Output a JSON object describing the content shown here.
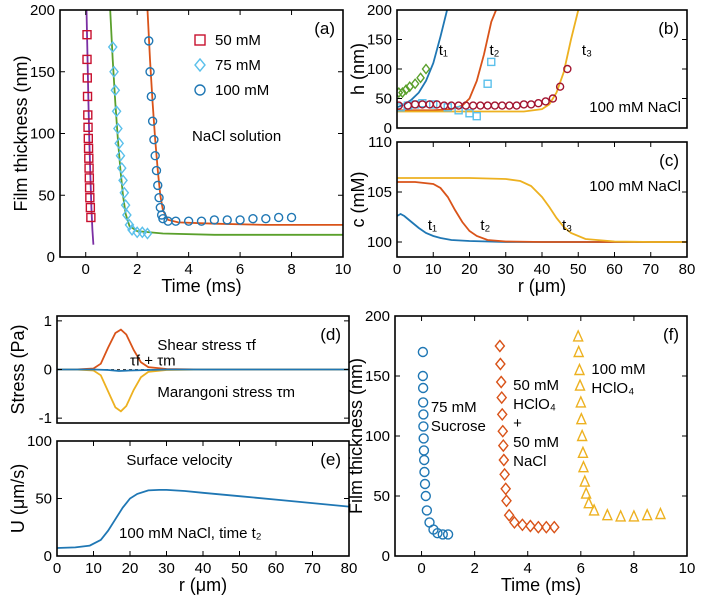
{
  "colors": {
    "blue": "#1f77b4",
    "orange": "#d95319",
    "yellow": "#edb120",
    "red": "#c8102e",
    "cyan": "#5bc0eb",
    "green": "#5aa02c",
    "purple": "#7b2fa3",
    "maroon": "#a2142f"
  },
  "chart_data": [
    {
      "id": "a",
      "type": "scatter",
      "panel_label": "(a)",
      "xlabel": "Time (ms)",
      "ylabel": "Film thickness (nm)",
      "xlim": [
        -1,
        10
      ],
      "ylim": [
        0,
        200
      ],
      "xticks": [
        0,
        2,
        4,
        6,
        8,
        10
      ],
      "yticks": [
        0,
        50,
        100,
        150,
        200
      ],
      "annotation": "NaCl solution",
      "series": [
        {
          "name": "50 mM",
          "marker": "square",
          "color": "red",
          "x": [
            0.05,
            0.05,
            0.06,
            0.07,
            0.08,
            0.09,
            0.1,
            0.11,
            0.12,
            0.13,
            0.14,
            0.15,
            0.16,
            0.18,
            0.2
          ],
          "y": [
            180,
            160,
            145,
            130,
            115,
            105,
            96,
            88,
            80,
            72,
            64,
            56,
            48,
            40,
            32
          ]
        },
        {
          "name": "75 mM",
          "marker": "diamond",
          "color": "cyan",
          "x": [
            1.05,
            1.1,
            1.15,
            1.2,
            1.25,
            1.3,
            1.35,
            1.4,
            1.45,
            1.5,
            1.55,
            1.6,
            1.7,
            1.8,
            2.0,
            2.2,
            2.4
          ],
          "y": [
            170,
            150,
            135,
            118,
            104,
            92,
            82,
            72,
            62,
            52,
            42,
            34,
            26,
            22,
            20,
            20,
            19
          ]
        },
        {
          "name": "100 mM",
          "marker": "circle",
          "color": "blue",
          "x": [
            2.45,
            2.5,
            2.55,
            2.6,
            2.65,
            2.7,
            2.75,
            2.8,
            2.85,
            2.9,
            2.95,
            3.0,
            3.2,
            3.5,
            4.0,
            4.5,
            5.0,
            5.5,
            6.0,
            6.5,
            7.0,
            7.5,
            8.0
          ],
          "y": [
            175,
            150,
            130,
            110,
            95,
            82,
            70,
            58,
            48,
            40,
            34,
            31,
            29,
            29,
            29,
            29,
            30,
            30,
            30,
            31,
            31,
            32,
            32
          ]
        }
      ],
      "fits": [
        {
          "color": "purple",
          "x": [
            0.03,
            0.06,
            0.1,
            0.14,
            0.18,
            0.22,
            0.26,
            0.3
          ],
          "y": [
            200,
            170,
            130,
            95,
            65,
            40,
            22,
            10
          ]
        },
        {
          "color": "green",
          "x": [
            0.95,
            1.05,
            1.15,
            1.25,
            1.35,
            1.45,
            1.55,
            1.7,
            2.0,
            3.0,
            5.0,
            8.0,
            10.0
          ],
          "y": [
            200,
            160,
            125,
            95,
            70,
            50,
            35,
            25,
            21,
            19,
            18,
            18,
            18
          ]
        },
        {
          "color": "orange",
          "x": [
            2.4,
            2.5,
            2.6,
            2.7,
            2.8,
            2.9,
            3.0,
            3.2,
            3.6,
            5.0,
            7.0,
            10.0
          ],
          "y": [
            200,
            160,
            125,
            95,
            70,
            50,
            38,
            30,
            28,
            27,
            26,
            26
          ]
        }
      ]
    },
    {
      "id": "b",
      "type": "scatter",
      "panel_label": "(b)",
      "xlabel": "",
      "ylabel": "h (nm)",
      "xlim": [
        0,
        80
      ],
      "ylim": [
        0,
        200
      ],
      "yticks": [
        0,
        50,
        100,
        150,
        200
      ],
      "annotation": "100 mM NaCl",
      "curve_labels": [
        "t₁",
        "t₂",
        "t₃"
      ],
      "series": [
        {
          "name": "t1 data",
          "marker": "diamond",
          "color": "green",
          "x": [
            0.5,
            1.5,
            2.5,
            3.5,
            5,
            6.5,
            8
          ],
          "y": [
            60,
            60,
            65,
            70,
            75,
            85,
            100
          ]
        },
        {
          "name": "t2 data",
          "marker": "square",
          "color": "cyan",
          "x": [
            1,
            3,
            5,
            7,
            10,
            14,
            17,
            20,
            22,
            25,
            26
          ],
          "y": [
            35,
            38,
            40,
            42,
            40,
            35,
            30,
            25,
            20,
            75,
            112
          ]
        },
        {
          "name": "t3 data",
          "marker": "circle",
          "color": "maroon",
          "x": [
            0.5,
            3,
            5,
            7,
            9,
            11,
            13,
            15,
            17,
            19,
            21,
            23,
            25,
            27,
            29,
            31,
            33,
            35,
            37,
            39,
            41,
            43,
            45,
            47
          ],
          "y": [
            38,
            38,
            40,
            40,
            40,
            40,
            38,
            38,
            38,
            38,
            38,
            38,
            38,
            38,
            38,
            38,
            38,
            40,
            40,
            42,
            45,
            50,
            70,
            100
          ]
        }
      ],
      "fits": [
        {
          "color": "blue",
          "x": [
            0,
            2,
            4,
            6,
            8,
            10,
            12,
            14
          ],
          "y": [
            35,
            40,
            48,
            60,
            80,
            110,
            155,
            205
          ]
        },
        {
          "color": "orange",
          "x": [
            0,
            5,
            10,
            15,
            18,
            20,
            22,
            24,
            26,
            28
          ],
          "y": [
            30,
            30,
            30,
            32,
            38,
            50,
            80,
            125,
            180,
            210
          ]
        },
        {
          "color": "yellow",
          "x": [
            0,
            10,
            20,
            30,
            35,
            40,
            42,
            44,
            46,
            48,
            50,
            51
          ],
          "y": [
            28,
            28,
            28,
            28,
            28,
            32,
            40,
            60,
            95,
            150,
            200,
            220
          ]
        }
      ]
    },
    {
      "id": "c",
      "type": "line",
      "panel_label": "(c)",
      "xlabel": "r (μm)",
      "ylabel": "c (mM)",
      "xlim": [
        0,
        80
      ],
      "ylim": [
        98.5,
        110
      ],
      "xticks": [
        0,
        10,
        20,
        30,
        40,
        50,
        60,
        70,
        80
      ],
      "yticks": [
        100,
        105,
        110
      ],
      "annotation": "100 mM NaCl",
      "curve_labels": [
        "t₁",
        "t₂",
        "t₃"
      ],
      "series": [
        {
          "name": "t1",
          "color": "blue",
          "x": [
            0,
            1,
            2,
            4,
            6,
            8,
            10,
            12,
            15,
            20,
            30,
            40,
            60,
            80
          ],
          "y": [
            102.6,
            102.8,
            102.6,
            102.0,
            101.4,
            100.9,
            100.6,
            100.4,
            100.2,
            100.1,
            100.0,
            100.0,
            100.0,
            100.0
          ]
        },
        {
          "name": "t2",
          "color": "orange",
          "x": [
            0,
            5,
            10,
            12,
            14,
            16,
            18,
            20,
            22,
            25,
            30,
            40,
            60,
            80
          ],
          "y": [
            106.0,
            106.0,
            105.8,
            105.4,
            104.5,
            103.2,
            102.0,
            101.1,
            100.6,
            100.2,
            100.05,
            100.0,
            100.0,
            100.0
          ]
        },
        {
          "name": "t3",
          "color": "yellow",
          "x": [
            0,
            10,
            20,
            30,
            34,
            37,
            40,
            42,
            44,
            46,
            48,
            52,
            60,
            70,
            80
          ],
          "y": [
            106.4,
            106.4,
            106.4,
            106.3,
            106.1,
            105.6,
            104.5,
            103.5,
            102.4,
            101.5,
            100.9,
            100.3,
            100.05,
            100.0,
            100.0
          ]
        }
      ]
    },
    {
      "id": "d",
      "type": "line",
      "panel_label": "(d)",
      "xlabel": "",
      "ylabel": "Stress (Pa)",
      "xlim": [
        0,
        80
      ],
      "ylim": [
        -1.1,
        1.1
      ],
      "yticks": [
        -1,
        0,
        1
      ],
      "annotations": {
        "shear": "Shear stress τf",
        "sum": "τf + τm",
        "marangoni": "Marangoni stress τm"
      },
      "series": [
        {
          "name": "Shear stress",
          "color": "orange",
          "x": [
            0,
            5,
            10,
            12,
            14,
            16,
            17.5,
            19,
            21,
            23,
            25,
            30,
            40,
            60,
            80
          ],
          "y": [
            0,
            0,
            0.02,
            0.12,
            0.45,
            0.75,
            0.82,
            0.72,
            0.4,
            0.15,
            0.05,
            0.01,
            0,
            0,
            0
          ]
        },
        {
          "name": "Marangoni stress",
          "color": "yellow",
          "x": [
            0,
            5,
            10,
            12,
            14,
            16,
            17.5,
            19,
            21,
            23,
            25,
            30,
            40,
            60,
            80
          ],
          "y": [
            0,
            0,
            -0.02,
            -0.12,
            -0.45,
            -0.78,
            -0.86,
            -0.75,
            -0.42,
            -0.16,
            -0.05,
            -0.01,
            0,
            0,
            0
          ]
        },
        {
          "name": "Sum",
          "color": "blue",
          "x": [
            0,
            10,
            14,
            17,
            20,
            25,
            30,
            40,
            60,
            80
          ],
          "y": [
            0,
            0,
            -0.01,
            -0.03,
            -0.02,
            -0.01,
            0,
            0,
            0,
            0
          ]
        }
      ]
    },
    {
      "id": "e",
      "type": "line",
      "panel_label": "(e)",
      "xlabel": "r (μm)",
      "ylabel": "U (μm/s)",
      "xlim": [
        0,
        80
      ],
      "ylim": [
        0,
        100
      ],
      "xticks": [
        0,
        10,
        20,
        30,
        40,
        50,
        60,
        70,
        80
      ],
      "yticks": [
        0,
        50,
        100
      ],
      "annotation_top": "Surface velocity",
      "annotation_bottom": "100 mM NaCl, time t₂",
      "series": [
        {
          "name": "U",
          "color": "blue",
          "x": [
            0,
            5,
            9,
            12,
            14,
            16,
            18,
            20,
            22,
            25,
            28,
            30,
            35,
            40,
            50,
            60,
            70,
            80
          ],
          "y": [
            7,
            7.5,
            9,
            14,
            22,
            32,
            42,
            50,
            54,
            57,
            57.5,
            57.5,
            56.5,
            55,
            52,
            49,
            46,
            43
          ]
        }
      ]
    },
    {
      "id": "f",
      "type": "scatter",
      "panel_label": "(f)",
      "xlabel": "Time (ms)",
      "ylabel": "Film thickness (nm)",
      "xlim": [
        -1,
        10
      ],
      "ylim": [
        0,
        200
      ],
      "xticks": [
        0,
        2,
        4,
        6,
        8,
        10
      ],
      "yticks": [
        0,
        50,
        100,
        150,
        200
      ],
      "series": [
        {
          "name": "75 mM Sucrose",
          "label_lines": [
            "75 mM",
            "Sucrose"
          ],
          "marker": "circle",
          "color": "blue",
          "x": [
            0.05,
            0.05,
            0.06,
            0.06,
            0.07,
            0.07,
            0.08,
            0.09,
            0.1,
            0.11,
            0.13,
            0.16,
            0.2,
            0.3,
            0.45,
            0.6,
            0.8,
            1.0
          ],
          "y": [
            170,
            150,
            140,
            128,
            118,
            108,
            98,
            88,
            80,
            70,
            60,
            50,
            38,
            28,
            22,
            19,
            18,
            18
          ]
        },
        {
          "name": "50 mM HClO4 + 50 mM NaCl",
          "label_lines": [
            "50 mM",
            "HClO₄",
            "+",
            "50 mM",
            "NaCl"
          ],
          "marker": "diamond",
          "color": "orange",
          "x": [
            2.95,
            2.97,
            3.0,
            3.02,
            3.04,
            3.06,
            3.08,
            3.1,
            3.13,
            3.17,
            3.2,
            3.3,
            3.5,
            3.8,
            4.1,
            4.4,
            4.7,
            5.0
          ],
          "y": [
            175,
            160,
            145,
            132,
            118,
            104,
            92,
            80,
            68,
            56,
            46,
            34,
            28,
            26,
            25,
            24,
            24,
            24
          ]
        },
        {
          "name": "100 mM HClO4",
          "label_lines": [
            "100 mM",
            "HClO₄"
          ],
          "marker": "triangle",
          "color": "yellow",
          "x": [
            5.9,
            5.92,
            5.95,
            5.97,
            6.0,
            6.02,
            6.05,
            6.08,
            6.1,
            6.15,
            6.2,
            6.3,
            6.5,
            7.0,
            7.5,
            8.0,
            8.5,
            9.0
          ],
          "y": [
            183,
            170,
            155,
            142,
            128,
            114,
            100,
            86,
            74,
            62,
            52,
            44,
            38,
            34,
            33,
            33,
            34,
            35
          ]
        }
      ]
    }
  ]
}
